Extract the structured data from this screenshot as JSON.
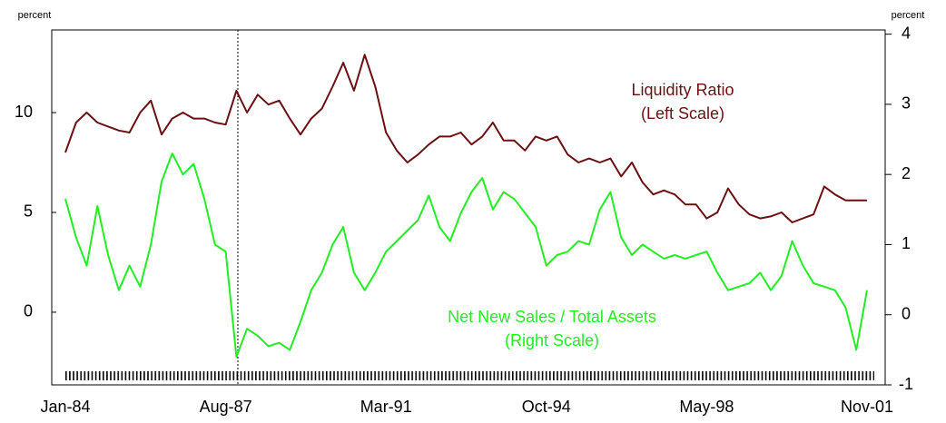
{
  "chart_data": {
    "type": "line",
    "y_label": "percent",
    "y2_label": "percent",
    "categories": [
      "Jan-84",
      null,
      null,
      null,
      null,
      null,
      null,
      null,
      null,
      null,
      null,
      null,
      null,
      null,
      null,
      "Aug-87",
      null,
      null,
      null,
      null,
      null,
      null,
      null,
      null,
      null,
      null,
      null,
      null,
      null,
      null,
      "Mar-91",
      null,
      null,
      null,
      null,
      null,
      null,
      null,
      null,
      null,
      null,
      null,
      null,
      null,
      null,
      "Oct-94",
      null,
      null,
      null,
      null,
      null,
      null,
      null,
      null,
      null,
      null,
      null,
      null,
      null,
      null,
      "May-98",
      null,
      null,
      null,
      null,
      null,
      null,
      null,
      null,
      null,
      null,
      null,
      null,
      null,
      null,
      "Nov-01"
    ],
    "ylim": [
      -3.64,
      14.14
    ],
    "yticks": [
      0,
      5,
      10
    ],
    "y2lim": [
      -1,
      4.06
    ],
    "y2ticks": [
      -1,
      0,
      1,
      2,
      3,
      4
    ],
    "series": [
      {
        "name": "Liquidity Ratio",
        "note": "(Left Scale)",
        "color": "#6b0f12",
        "axis": "y",
        "values": [
          8.0,
          9.5,
          10.0,
          9.5,
          9.3,
          9.1,
          9.0,
          10.0,
          10.6,
          8.9,
          9.7,
          10.0,
          9.7,
          9.7,
          9.5,
          9.4,
          11.1,
          10.0,
          10.9,
          10.4,
          10.6,
          9.7,
          8.9,
          9.7,
          10.2,
          11.3,
          12.5,
          11.1,
          12.9,
          11.3,
          9.0,
          8.1,
          7.5,
          7.9,
          8.4,
          8.8,
          8.8,
          9.0,
          8.4,
          8.8,
          9.5,
          8.6,
          8.6,
          8.1,
          8.8,
          8.6,
          8.8,
          7.9,
          7.5,
          7.7,
          7.5,
          7.7,
          6.8,
          7.5,
          6.5,
          5.9,
          6.1,
          5.9,
          5.4,
          5.4,
          4.7,
          5.0,
          6.2,
          5.4,
          4.9,
          4.7,
          4.8,
          5.0,
          4.5,
          4.7,
          4.9,
          6.3,
          5.9,
          5.6,
          5.6,
          5.6
        ]
      },
      {
        "name": "Net New Sales / Total Assets",
        "note": "(Right Scale)",
        "color": "#22ee22",
        "axis": "y2",
        "values": [
          1.65,
          1.1,
          0.7,
          1.55,
          0.85,
          0.35,
          0.7,
          0.4,
          1.0,
          1.9,
          2.3,
          2.0,
          2.15,
          1.65,
          1.0,
          0.9,
          -0.6,
          -0.2,
          -0.3,
          -0.45,
          -0.4,
          -0.5,
          -0.1,
          0.35,
          0.6,
          1.0,
          1.25,
          0.6,
          0.35,
          0.6,
          0.9,
          1.05,
          1.2,
          1.35,
          1.7,
          1.25,
          1.05,
          1.45,
          1.75,
          1.95,
          1.5,
          1.75,
          1.65,
          1.45,
          1.25,
          0.7,
          0.85,
          0.9,
          1.05,
          1.0,
          1.5,
          1.75,
          1.1,
          0.85,
          1.0,
          0.9,
          0.8,
          0.85,
          0.8,
          0.85,
          0.9,
          0.6,
          0.35,
          0.4,
          0.45,
          0.6,
          0.35,
          0.55,
          1.05,
          0.7,
          0.45,
          0.4,
          0.35,
          0.1,
          -0.5,
          0.35
        ]
      }
    ]
  }
}
